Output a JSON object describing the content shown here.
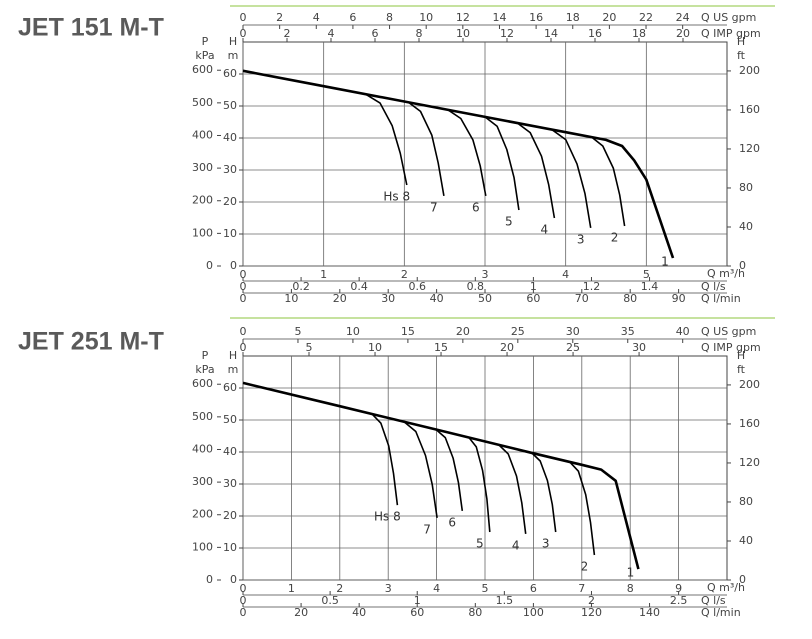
{
  "chart_data": [
    {
      "type": "line",
      "title": "JET 151 M-T",
      "line_color": "#000000",
      "grid": true,
      "x_label": "Q m³/h",
      "xlim": [
        0,
        6
      ],
      "xticks": [
        0,
        1,
        2,
        3,
        4,
        5
      ],
      "y_label": "H",
      "y_unit": "m",
      "ylim": [
        0,
        70
      ],
      "yticks": [
        0,
        10,
        20,
        30,
        40,
        50,
        60
      ],
      "secondary_axes": [
        {
          "side": "top",
          "label": "Q US gpm",
          "lim": [
            0,
            26.42
          ],
          "ticks": [
            0,
            2,
            4,
            6,
            8,
            10,
            12,
            14,
            16,
            18,
            20,
            22,
            24
          ]
        },
        {
          "side": "top",
          "label": "Q IMP gpm",
          "lim": [
            0,
            22.0
          ],
          "ticks": [
            0,
            2,
            4,
            6,
            8,
            10,
            12,
            14,
            16,
            18,
            20
          ]
        },
        {
          "side": "bottom",
          "label": "Q l/s",
          "lim": [
            0,
            1.6667
          ],
          "ticks": [
            0,
            0.2,
            0.4,
            0.6,
            0.8,
            1,
            1.2,
            1.4
          ]
        },
        {
          "side": "bottom",
          "label": "Q l/min",
          "lim": [
            0,
            100
          ],
          "ticks": [
            0,
            10,
            20,
            30,
            40,
            50,
            60,
            70,
            80,
            90
          ]
        },
        {
          "side": "left",
          "label": "P",
          "unit": "kPa",
          "lim": [
            0,
            686.5
          ],
          "ticks": [
            0,
            100,
            200,
            300,
            400,
            500,
            600
          ]
        },
        {
          "side": "right",
          "label": "H",
          "unit": "ft",
          "lim": [
            0,
            229.66
          ],
          "ticks": [
            0,
            40,
            80,
            120,
            160,
            200
          ]
        }
      ],
      "series": [
        {
          "name": "1",
          "x": [
            0,
            1,
            2,
            3,
            4,
            4.5,
            4.7,
            4.85,
            5.0,
            5.33
          ],
          "values": [
            61,
            56.2,
            51.4,
            46.6,
            41.8,
            39.4,
            37.5,
            33,
            27,
            2.5
          ]
        },
        {
          "name": "2",
          "x": [
            4.32,
            4.46,
            4.59,
            4.67,
            4.73
          ],
          "values": [
            40.3,
            37.5,
            30.6,
            22.2,
            12.5
          ]
        },
        {
          "name": "3",
          "x": [
            3.83,
            4.0,
            4.14,
            4.24,
            4.31
          ],
          "values": [
            42.6,
            39.5,
            31.9,
            22.6,
            11.9
          ]
        },
        {
          "name": "4",
          "x": [
            3.4,
            3.56,
            3.7,
            3.79,
            3.86
          ],
          "values": [
            44.7,
            41.7,
            34.3,
            25.4,
            15
          ]
        },
        {
          "name": "5",
          "x": [
            3.0,
            3.15,
            3.27,
            3.36,
            3.42
          ],
          "values": [
            46.6,
            43.7,
            36.4,
            27.7,
            17.5
          ]
        },
        {
          "name": "6",
          "x": [
            2.54,
            2.7,
            2.85,
            2.94,
            3.01
          ],
          "values": [
            48.8,
            46.1,
            39.4,
            31.3,
            21.9
          ]
        },
        {
          "name": "7",
          "x": [
            2.05,
            2.2,
            2.34,
            2.42,
            2.49
          ],
          "values": [
            51.2,
            48.3,
            40.9,
            32.2,
            21.9
          ]
        },
        {
          "name": "Hs 8",
          "x": [
            1.52,
            1.7,
            1.85,
            1.95,
            2.03
          ],
          "values": [
            53.7,
            50.9,
            43.8,
            35.2,
            25.3
          ]
        }
      ]
    },
    {
      "type": "line",
      "title": "JET 251 M-T",
      "line_color": "#000000",
      "grid": true,
      "x_label": "Q m³/h",
      "xlim": [
        0,
        10
      ],
      "xticks": [
        0,
        1,
        2,
        3,
        4,
        5,
        6,
        7,
        8,
        9
      ],
      "y_label": "H",
      "y_unit": "m",
      "ylim": [
        0,
        70
      ],
      "yticks": [
        0,
        10,
        20,
        30,
        40,
        50,
        60
      ],
      "secondary_axes": [
        {
          "side": "top",
          "label": "Q US gpm",
          "lim": [
            0,
            44.03
          ],
          "ticks": [
            0,
            5,
            10,
            15,
            20,
            25,
            30,
            35,
            40
          ]
        },
        {
          "side": "top",
          "label": "Q IMP gpm",
          "lim": [
            0,
            36.66
          ],
          "ticks": [
            0,
            5,
            10,
            15,
            20,
            25,
            30
          ]
        },
        {
          "side": "bottom",
          "label": "Q l/s",
          "lim": [
            0,
            2.7778
          ],
          "ticks": [
            0,
            0.5,
            1,
            1.5,
            2,
            2.5
          ]
        },
        {
          "side": "bottom",
          "label": "Q l/min",
          "lim": [
            0,
            166.67
          ],
          "ticks": [
            0,
            20,
            40,
            60,
            80,
            100,
            120,
            140
          ]
        },
        {
          "side": "left",
          "label": "P",
          "unit": "kPa",
          "lim": [
            0,
            686.5
          ],
          "ticks": [
            0,
            100,
            200,
            300,
            400,
            500,
            600
          ]
        },
        {
          "side": "right",
          "label": "H",
          "unit": "ft",
          "lim": [
            0,
            229.66
          ],
          "ticks": [
            0,
            40,
            80,
            120,
            160,
            200
          ]
        }
      ],
      "series": [
        {
          "name": "1",
          "x": [
            0,
            2,
            4,
            6,
            7,
            7.4,
            7.7,
            8.17
          ],
          "values": [
            61.6,
            54.3,
            47.0,
            39.6,
            36.0,
            34.5,
            31,
            3.4
          ]
        },
        {
          "name": "2",
          "x": [
            6.75,
            6.93,
            7.08,
            7.18,
            7.26
          ],
          "values": [
            36.9,
            34.0,
            26.7,
            18.0,
            7.8
          ]
        },
        {
          "name": "3",
          "x": [
            5.97,
            6.14,
            6.29,
            6.39,
            6.46
          ],
          "values": [
            39.7,
            37.2,
            31.1,
            23.6,
            15.0
          ]
        },
        {
          "name": "4",
          "x": [
            5.29,
            5.48,
            5.65,
            5.76,
            5.84
          ],
          "values": [
            42.2,
            39.4,
            32.5,
            24.1,
            14.4
          ]
        },
        {
          "name": "5",
          "x": [
            4.67,
            4.82,
            4.95,
            5.04,
            5.1
          ],
          "values": [
            44.5,
            41.6,
            34.2,
            25.3,
            15.0
          ]
        },
        {
          "name": "6",
          "x": [
            3.99,
            4.18,
            4.34,
            4.45,
            4.53
          ],
          "values": [
            47.0,
            44.5,
            38.1,
            30.5,
            21.6
          ]
        },
        {
          "name": "7",
          "x": [
            3.33,
            3.57,
            3.77,
            3.91,
            4.01
          ],
          "values": [
            49.4,
            46.4,
            38.9,
            29.9,
            19.4
          ]
        },
        {
          "name": "Hs 8",
          "x": [
            2.67,
            2.85,
            3.01,
            3.11,
            3.19
          ],
          "values": [
            51.8,
            49.0,
            41.9,
            33.3,
            23.4
          ]
        }
      ]
    }
  ]
}
